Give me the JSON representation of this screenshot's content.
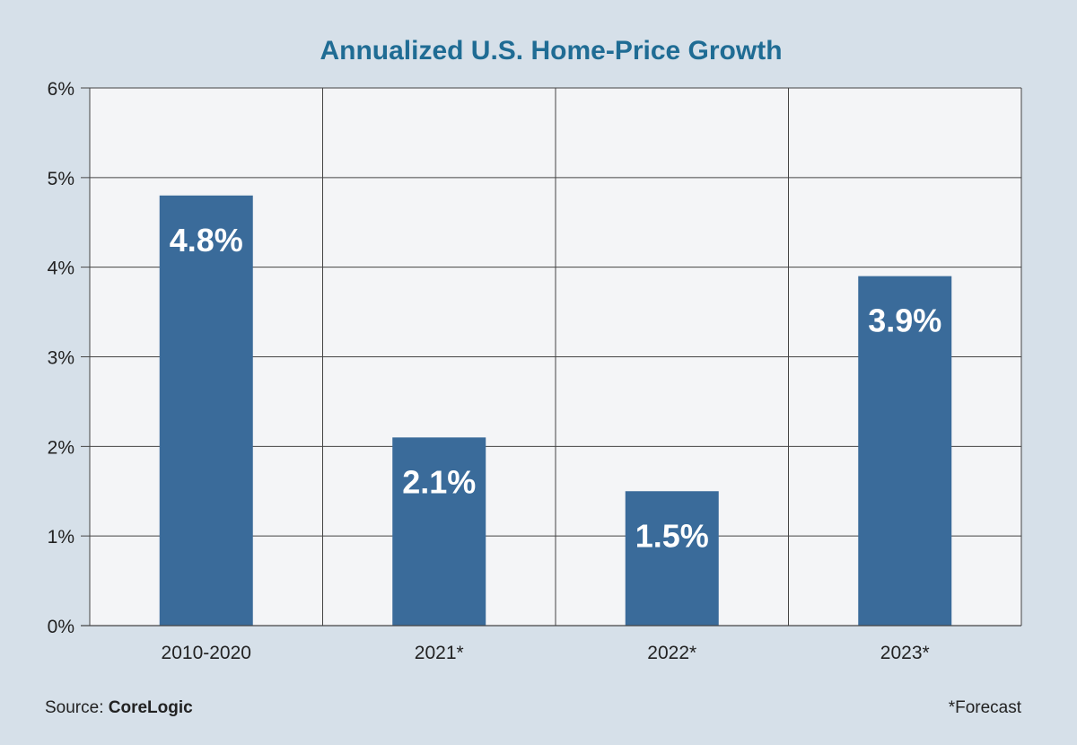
{
  "chart_data": {
    "type": "bar",
    "title": "Annualized U.S. Home-Price Growth",
    "categories": [
      "2010-2020",
      "2021*",
      "2022*",
      "2023*"
    ],
    "values": [
      4.8,
      2.1,
      1.5,
      3.9
    ],
    "data_labels": [
      "4.8%",
      "2.1%",
      "1.5%",
      "3.9%"
    ],
    "ylim": [
      0,
      6
    ],
    "yticks": [
      0,
      1,
      2,
      3,
      4,
      5,
      6
    ],
    "ytick_labels": [
      "0%",
      "1%",
      "2%",
      "3%",
      "4%",
      "5%",
      "6%"
    ],
    "xlabel": "",
    "ylabel": "",
    "grid": true,
    "colors": {
      "bar": "#3a6b9a",
      "title": "#1f6c94",
      "plot_background": "#f4f5f7",
      "page_background": "#d6e0e9",
      "grid": "#444444"
    }
  },
  "footer": {
    "source_prefix": "Source: ",
    "source_name": "CoreLogic",
    "note": "*Forecast"
  }
}
